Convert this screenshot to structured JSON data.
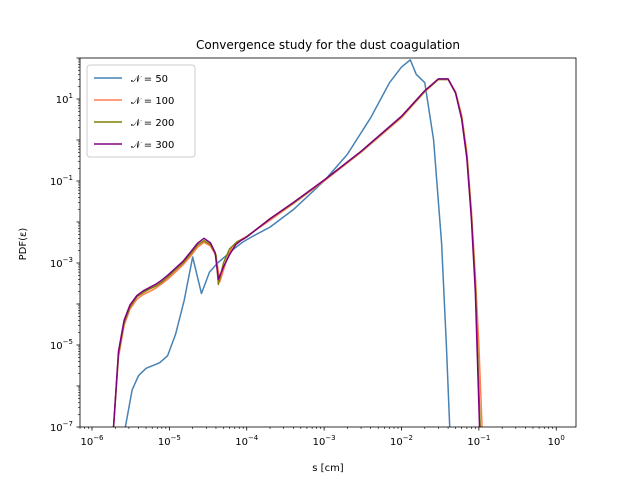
{
  "chart_data": {
    "type": "line",
    "title": "Convergence study for the dust coagulation",
    "xlabel": "s [cm]",
    "ylabel": "PDF(ε)",
    "xscale": "log",
    "yscale": "log",
    "xlim": [
      7e-07,
      1.8
    ],
    "ylim": [
      1e-07,
      100
    ],
    "legend_position": "upper-left",
    "grid": false,
    "x_ticks": [
      {
        "value": 1e-06,
        "exp": "−6"
      },
      {
        "value": 1e-05,
        "exp": "−5"
      },
      {
        "value": 0.0001,
        "exp": "−4"
      },
      {
        "value": 0.001,
        "exp": "−3"
      },
      {
        "value": 0.01,
        "exp": "−2"
      },
      {
        "value": 0.1,
        "exp": "−1"
      },
      {
        "value": 1,
        "exp": "0"
      }
    ],
    "y_ticks": [
      {
        "value": 1e-07,
        "exp": "−7"
      },
      {
        "value": 1e-05,
        "exp": "−5"
      },
      {
        "value": 0.001,
        "exp": "−3"
      },
      {
        "value": 0.1,
        "exp": "−1"
      },
      {
        "value": 10,
        "exp": "1"
      }
    ],
    "series": [
      {
        "name": "𝒩 = 50",
        "color": "#4682b4",
        "x": [
          2.7e-06,
          3.3e-06,
          4e-06,
          5e-06,
          6e-06,
          7.5e-06,
          9.5e-06,
          1.2e-05,
          1.55e-05,
          2e-05,
          2.6e-05,
          3.3e-05,
          4.2e-05,
          5.4e-05,
          7e-05,
          9e-05,
          0.00012,
          0.0002,
          0.0004,
          0.001,
          0.002,
          0.004,
          0.007,
          0.01,
          0.013,
          0.0155,
          0.02,
          0.026,
          0.033,
          0.038,
          0.042
        ],
        "y": [
          1e-07,
          8e-07,
          1.8e-06,
          2.7e-06,
          3.1e-06,
          3.7e-06,
          5.5e-06,
          1.8e-05,
          0.00012,
          0.0014,
          0.00018,
          0.0006,
          0.001,
          0.0015,
          0.0023,
          0.0033,
          0.0045,
          0.0075,
          0.02,
          0.1,
          0.45,
          3.5,
          25,
          60,
          90,
          40,
          25,
          1,
          0.003,
          1e-05,
          1e-07
        ]
      },
      {
        "name": "𝒩 = 100",
        "color": "#ff7f50",
        "x": [
          1.9e-06,
          2.2e-06,
          2.6e-06,
          3.1e-06,
          3.8e-06,
          4.6e-06,
          5.5e-06,
          6.6e-06,
          7.8e-06,
          9.5e-06,
          1.2e-05,
          1.5e-05,
          1.9e-05,
          2.3e-05,
          2.8e-05,
          3.4e-05,
          4e-05,
          4.5e-05,
          5.5e-05,
          6.5e-05,
          8e-05,
          0.0001,
          0.0002,
          0.0004,
          0.001,
          0.003,
          0.01,
          0.02,
          0.03,
          0.04,
          0.05,
          0.06,
          0.07,
          0.08,
          0.09,
          0.1,
          0.11
        ],
        "y": [
          1e-07,
          5e-06,
          3e-05,
          7.5e-05,
          0.00013,
          0.00017,
          0.0002,
          0.00024,
          0.0003,
          0.0004,
          0.0006,
          0.0009,
          0.0015,
          0.0024,
          0.0032,
          0.0026,
          0.0015,
          0.00035,
          0.0012,
          0.0025,
          0.0035,
          0.0045,
          0.011,
          0.028,
          0.1,
          0.5,
          3.5,
          15,
          30,
          30,
          15,
          4,
          0.5,
          0.02,
          0.0005,
          1e-05,
          1e-07
        ]
      },
      {
        "name": "𝒩 = 200",
        "color": "#808000",
        "x": [
          1.9e-06,
          2.2e-06,
          2.6e-06,
          3.1e-06,
          3.8e-06,
          4.6e-06,
          5.5e-06,
          6.6e-06,
          7.8e-06,
          9.5e-06,
          1.2e-05,
          1.5e-05,
          1.9e-05,
          2.3e-05,
          2.8e-05,
          3.4e-05,
          4e-05,
          4.3e-05,
          5e-05,
          6e-05,
          7.5e-05,
          9e-05,
          0.0001,
          0.0002,
          0.0004,
          0.001,
          0.003,
          0.01,
          0.02,
          0.03,
          0.04,
          0.05,
          0.06,
          0.07,
          0.08,
          0.09,
          0.104
        ],
        "y": [
          1e-07,
          6e-06,
          3.5e-05,
          8.5e-05,
          0.00015,
          0.00019,
          0.00023,
          0.00027,
          0.00033,
          0.00045,
          0.00068,
          0.001,
          0.0017,
          0.0027,
          0.0035,
          0.0028,
          0.0016,
          0.0003,
          0.001,
          0.0022,
          0.0033,
          0.0038,
          0.0044,
          0.012,
          0.029,
          0.105,
          0.52,
          3.7,
          15.5,
          30,
          30,
          14,
          3.5,
          0.4,
          0.015,
          0.0003,
          1e-07
        ]
      },
      {
        "name": "𝒩 = 300",
        "color": "#800080",
        "x": [
          1.9e-06,
          2.2e-06,
          2.6e-06,
          3.1e-06,
          3.8e-06,
          4.6e-06,
          5.5e-06,
          6.6e-06,
          7.8e-06,
          9.5e-06,
          1.2e-05,
          1.5e-05,
          1.9e-05,
          2.3e-05,
          2.8e-05,
          3.4e-05,
          3.9e-05,
          4.3e-05,
          5e-05,
          6e-05,
          7.2e-05,
          8.5e-05,
          0.0001,
          0.0002,
          0.0004,
          0.001,
          0.003,
          0.01,
          0.02,
          0.03,
          0.04,
          0.05,
          0.06,
          0.07,
          0.08,
          0.09,
          0.102
        ],
        "y": [
          1e-07,
          7e-06,
          4e-05,
          9.5e-05,
          0.00016,
          0.00021,
          0.00025,
          0.0003,
          0.00037,
          0.0005,
          0.00075,
          0.0011,
          0.0019,
          0.003,
          0.004,
          0.0031,
          0.0018,
          0.0004,
          0.0008,
          0.0016,
          0.0028,
          0.0036,
          0.0043,
          0.012,
          0.03,
          0.105,
          0.53,
          3.8,
          16,
          31,
          31,
          14,
          3.2,
          0.35,
          0.012,
          0.0002,
          1e-07
        ]
      }
    ]
  }
}
